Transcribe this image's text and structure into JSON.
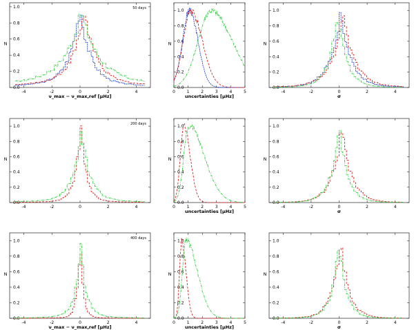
{
  "figure": {
    "colors": {
      "blue": "#1f3fd8",
      "red": "#e02020",
      "green": "#30d040"
    },
    "row_labels": [
      "50 days",
      "200 days",
      "400 days"
    ],
    "col_xlabels": [
      "ν_max − ν_max,ref [μHz]",
      "uncertainties [μHz]",
      "σ"
    ],
    "ylabel": "N"
  },
  "chart_data": [
    {
      "type": "line",
      "row": 0,
      "col": 0,
      "title": "",
      "annotation": "50 days",
      "xlabel": "ν_max − ν_max,ref [μHz]",
      "ylabel": "N",
      "xlim": [
        -5,
        5
      ],
      "ylim": [
        0,
        1.05
      ],
      "xticks": [
        -4,
        -2,
        0,
        2,
        4
      ],
      "yticks": [
        0,
        0.2,
        0.4,
        0.6,
        0.8,
        1.0
      ],
      "series": [
        {
          "name": "blue",
          "color": "#1f3fd8",
          "style": "step",
          "center": 0,
          "width": 1.0,
          "tail": 0.08,
          "peak": 1.0
        },
        {
          "name": "red",
          "color": "#e02020",
          "style": "step",
          "center": 0.3,
          "width": 1.1,
          "tail": 0.1,
          "peak": 0.95
        },
        {
          "name": "green",
          "color": "#30d040",
          "style": "step",
          "center": 0.1,
          "width": 1.6,
          "tail": 0.12,
          "peak": 0.92
        }
      ]
    },
    {
      "type": "line",
      "row": 0,
      "col": 1,
      "title": "",
      "xlabel": "uncertainties [μHz]",
      "ylabel": "N",
      "xlim": [
        0,
        5
      ],
      "ylim": [
        0,
        1.1
      ],
      "xticks": [
        0,
        1,
        2,
        3,
        4,
        5
      ],
      "yticks": [
        0,
        0.2,
        0.4,
        0.6,
        0.8,
        1.0
      ],
      "series": [
        {
          "name": "blue",
          "color": "#1f3fd8",
          "style": "smooth",
          "peakx": 1.1,
          "rise": 0.5,
          "fall": 0.6,
          "peak": 1.0
        },
        {
          "name": "red",
          "color": "#e02020",
          "style": "smooth",
          "peakx": 1.2,
          "rise": 0.55,
          "fall": 0.8,
          "peak": 1.0
        },
        {
          "name": "green",
          "color": "#30d040",
          "style": "smooth",
          "peakx": 2.6,
          "rise": 0.9,
          "fall": 1.5,
          "peak": 1.0
        }
      ]
    },
    {
      "type": "line",
      "row": 0,
      "col": 2,
      "title": "",
      "xlabel": "σ",
      "ylabel": "N",
      "xlim": [
        -5,
        5
      ],
      "ylim": [
        0,
        1.1
      ],
      "xticks": [
        -4,
        -2,
        0,
        2,
        4
      ],
      "yticks": [
        0,
        0.2,
        0.4,
        0.6,
        0.8,
        1.0
      ],
      "series": [
        {
          "name": "blue",
          "color": "#1f3fd8",
          "style": "step",
          "center": 0.1,
          "width": 1.0,
          "tail": 0.02,
          "peak": 1.0
        },
        {
          "name": "red",
          "color": "#e02020",
          "style": "step",
          "center": 0.3,
          "width": 1.1,
          "tail": 0.02,
          "peak": 0.95
        },
        {
          "name": "green",
          "color": "#30d040",
          "style": "step",
          "center": -0.1,
          "width": 0.85,
          "tail": 0.01,
          "peak": 0.97
        }
      ]
    },
    {
      "type": "line",
      "row": 1,
      "col": 0,
      "title": "",
      "annotation": "200 days",
      "xlabel": "",
      "ylabel": "N",
      "xlim": [
        -5,
        5
      ],
      "ylim": [
        0,
        1.1
      ],
      "xticks": [
        -4,
        -2,
        0,
        2,
        4
      ],
      "yticks": [
        0,
        0.2,
        0.4,
        0.6,
        0.8,
        1.0
      ],
      "series": [
        {
          "name": "red",
          "color": "#e02020",
          "style": "step",
          "center": 0.05,
          "width": 0.55,
          "tail": 0.03,
          "peak": 1.0
        },
        {
          "name": "green",
          "color": "#30d040",
          "style": "step",
          "center": 0.1,
          "width": 0.8,
          "tail": 0.05,
          "peak": 0.95
        }
      ]
    },
    {
      "type": "line",
      "row": 1,
      "col": 1,
      "title": "",
      "xlabel": "uncertainties [μHz]",
      "ylabel": "N",
      "xlim": [
        0,
        5
      ],
      "ylim": [
        0,
        1.1
      ],
      "xticks": [
        0,
        1,
        2,
        3,
        4,
        5
      ],
      "yticks": [
        0,
        0.2,
        0.4,
        0.6,
        0.8,
        1.0
      ],
      "series": [
        {
          "name": "red",
          "color": "#e02020",
          "style": "smooth",
          "peakx": 0.7,
          "rise": 0.25,
          "fall": 0.45,
          "peak": 1.0
        },
        {
          "name": "green",
          "color": "#30d040",
          "style": "smooth",
          "peakx": 1.05,
          "rise": 0.35,
          "fall": 1.1,
          "peak": 1.0
        }
      ]
    },
    {
      "type": "line",
      "row": 1,
      "col": 2,
      "title": "",
      "xlabel": "σ",
      "ylabel": "N",
      "xlim": [
        -5,
        5
      ],
      "ylim": [
        0,
        1.1
      ],
      "xticks": [
        -4,
        -2,
        0,
        2,
        4
      ],
      "yticks": [
        0,
        0.2,
        0.4,
        0.6,
        0.8,
        1.0
      ],
      "series": [
        {
          "name": "red",
          "color": "#e02020",
          "style": "step",
          "center": 0.2,
          "width": 0.9,
          "tail": 0.01,
          "peak": 1.0
        },
        {
          "name": "green",
          "color": "#30d040",
          "style": "step",
          "center": 0.0,
          "width": 0.8,
          "tail": 0.01,
          "peak": 0.97
        }
      ]
    },
    {
      "type": "line",
      "row": 2,
      "col": 0,
      "title": "",
      "annotation": "400 days",
      "xlabel": "ν_max − ν_max,ref [μHz]",
      "ylabel": "N",
      "xlim": [
        -5,
        5
      ],
      "ylim": [
        0,
        1.1
      ],
      "xticks": [
        -4,
        -2,
        0,
        2,
        4
      ],
      "yticks": [
        0,
        0.2,
        0.4,
        0.6,
        0.8,
        1.0
      ],
      "series": [
        {
          "name": "red",
          "color": "#e02020",
          "style": "step",
          "center": 0.0,
          "width": 0.3,
          "tail": 0.02,
          "peak": 1.0
        },
        {
          "name": "green",
          "color": "#30d040",
          "style": "step",
          "center": 0.05,
          "width": 0.55,
          "tail": 0.04,
          "peak": 0.9
        }
      ]
    },
    {
      "type": "line",
      "row": 2,
      "col": 1,
      "title": "",
      "xlabel": "uncertainties [μHz]",
      "ylabel": "N",
      "xlim": [
        0,
        5
      ],
      "ylim": [
        0,
        1.1
      ],
      "xticks": [
        0,
        1,
        2,
        3,
        4,
        5
      ],
      "yticks": [
        0,
        0.2,
        0.4,
        0.6,
        0.8,
        1.0
      ],
      "series": [
        {
          "name": "red",
          "color": "#e02020",
          "style": "smooth",
          "peakx": 0.55,
          "rise": 0.15,
          "fall": 0.3,
          "peak": 1.0
        },
        {
          "name": "green",
          "color": "#30d040",
          "style": "smooth",
          "peakx": 0.85,
          "rise": 0.25,
          "fall": 0.8,
          "peak": 1.0
        }
      ]
    },
    {
      "type": "line",
      "row": 2,
      "col": 2,
      "title": "",
      "xlabel": "σ",
      "ylabel": "N",
      "xlim": [
        -5,
        5
      ],
      "ylim": [
        0,
        1.1
      ],
      "xticks": [
        -4,
        -2,
        0,
        2,
        4
      ],
      "yticks": [
        0,
        0.2,
        0.4,
        0.6,
        0.8,
        1.0
      ],
      "series": [
        {
          "name": "red",
          "color": "#e02020",
          "style": "step",
          "center": 0.1,
          "width": 0.8,
          "tail": 0.01,
          "peak": 1.0
        },
        {
          "name": "green",
          "color": "#30d040",
          "style": "step",
          "center": 0.0,
          "width": 0.7,
          "tail": 0.01,
          "peak": 0.97
        }
      ]
    }
  ]
}
